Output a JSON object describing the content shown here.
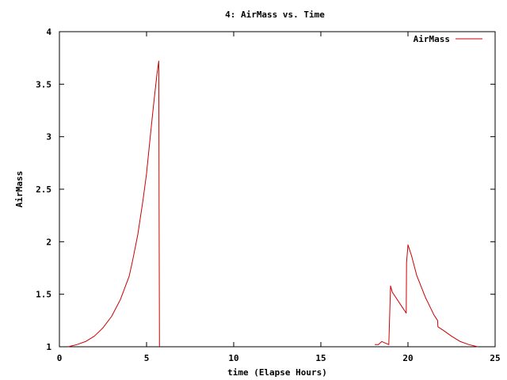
{
  "chart_data": {
    "type": "line",
    "title": "4: AirMass vs. Time",
    "xlabel": "time (Elapse Hours)",
    "ylabel": "AirMass",
    "xlim": [
      0,
      25
    ],
    "ylim": [
      1,
      4
    ],
    "x_ticks": [
      0,
      5,
      10,
      15,
      20,
      25
    ],
    "x_tick_labels": [
      "0",
      "5",
      "10",
      "15",
      "20",
      "25"
    ],
    "y_ticks": [
      1,
      1.5,
      2,
      2.5,
      3,
      3.5,
      4
    ],
    "y_tick_labels": [
      "1",
      "1.5",
      "2",
      "2.5",
      "3",
      "3.5",
      "4"
    ],
    "grid": false,
    "legend": "top-right",
    "series": [
      {
        "name": "AirMass",
        "color": "#cc0000",
        "segments": [
          [
            [
              0.5,
              1.0
            ],
            [
              1.0,
              1.02
            ],
            [
              1.5,
              1.05
            ],
            [
              2.0,
              1.1
            ],
            [
              2.5,
              1.18
            ],
            [
              3.0,
              1.29
            ],
            [
              3.5,
              1.45
            ],
            [
              4.0,
              1.67
            ],
            [
              4.2,
              1.82
            ],
            [
              4.5,
              2.07
            ],
            [
              4.8,
              2.4
            ],
            [
              5.0,
              2.65
            ],
            [
              5.2,
              2.98
            ],
            [
              5.4,
              3.3
            ],
            [
              5.6,
              3.6
            ],
            [
              5.7,
              3.72
            ],
            [
              5.72,
              2.35
            ],
            [
              5.74,
              1.0
            ]
          ],
          [
            [
              18.1,
              1.02
            ],
            [
              18.3,
              1.02
            ],
            [
              18.5,
              1.05
            ],
            [
              18.9,
              1.02
            ],
            [
              19.0,
              1.58
            ],
            [
              19.1,
              1.52
            ],
            [
              19.5,
              1.42
            ],
            [
              19.9,
              1.32
            ],
            [
              19.92,
              1.8
            ],
            [
              20.0,
              1.97
            ],
            [
              20.2,
              1.87
            ],
            [
              20.5,
              1.68
            ],
            [
              21.0,
              1.47
            ],
            [
              21.5,
              1.3
            ],
            [
              21.7,
              1.25
            ],
            [
              21.72,
              1.19
            ],
            [
              22.0,
              1.16
            ],
            [
              22.5,
              1.1
            ],
            [
              23.0,
              1.05
            ],
            [
              23.5,
              1.02
            ],
            [
              24.0,
              1.0
            ]
          ]
        ]
      }
    ]
  }
}
